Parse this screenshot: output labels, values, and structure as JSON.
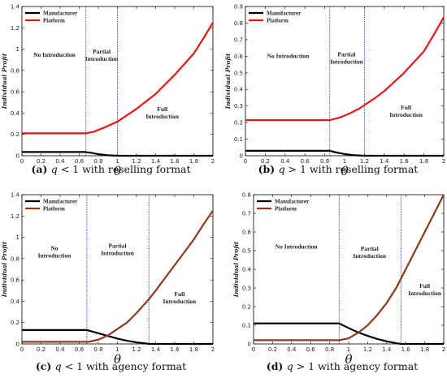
{
  "figure": {
    "ylabel": "Individual Profit",
    "xlabel": "θ"
  },
  "chart_data": [
    {
      "id": "a",
      "type": "line",
      "caption": {
        "tag": "(a)",
        "q": "q",
        "rest": " < 1 with reselling format"
      },
      "xlim": [
        0,
        2
      ],
      "ylim": [
        0,
        1.4
      ],
      "xticks": [
        "0",
        "0.2",
        "0.4",
        "0.6",
        "0.8",
        "1",
        "1.2",
        "1.4",
        "1.6",
        "1.8",
        "2"
      ],
      "yticks": [
        "0",
        "0.2",
        "0.4",
        "0.6",
        "0.8",
        "1",
        "1.2",
        "1.4"
      ],
      "thresholds": [
        0.67,
        1.0
      ],
      "regions": [
        {
          "lines": [
            "No Introduction"
          ],
          "x": 0.34,
          "y": 0.93
        },
        {
          "lines": [
            "Partial",
            "Introduction"
          ],
          "x": 0.835,
          "y": 0.96
        },
        {
          "lines": [
            "Full",
            "Introduction"
          ],
          "x": 1.47,
          "y": 0.42
        }
      ],
      "series": [
        {
          "name": "Manufacturer",
          "color": "#000000",
          "x": [
            0,
            0.67,
            0.72,
            0.8,
            0.9,
            1.0,
            2.0
          ],
          "y": [
            0.035,
            0.035,
            0.028,
            0.015,
            0.005,
            0.0,
            0.0
          ]
        },
        {
          "name": "Platform",
          "color": "#e8151b",
          "x": [
            0,
            0.67,
            0.75,
            0.85,
            0.95,
            1.0,
            1.1,
            1.2,
            1.3,
            1.4,
            1.5,
            1.6,
            1.7,
            1.8,
            1.9,
            2.0
          ],
          "y": [
            0.21,
            0.21,
            0.225,
            0.26,
            0.3,
            0.32,
            0.38,
            0.44,
            0.51,
            0.58,
            0.67,
            0.76,
            0.86,
            0.96,
            1.1,
            1.25
          ]
        }
      ]
    },
    {
      "id": "b",
      "type": "line",
      "caption": {
        "tag": "(b)",
        "q": "q",
        "rest": " > 1 with reselling format"
      },
      "xlim": [
        0,
        2
      ],
      "ylim": [
        0,
        0.9
      ],
      "xticks": [
        "0",
        "0.2",
        "0.4",
        "0.6",
        "0.8",
        "1",
        "1.2",
        "1.4",
        "1.6",
        "1.8",
        "2"
      ],
      "yticks": [
        "0",
        "0.1",
        "0.2",
        "0.3",
        "0.4",
        "0.5",
        "0.6",
        "0.7",
        "0.8",
        "0.9"
      ],
      "thresholds": [
        0.85,
        1.2
      ],
      "regions": [
        {
          "lines": [
            "No Introduction"
          ],
          "x": 0.43,
          "y": 0.59
        },
        {
          "lines": [
            "Partial",
            "Introduction"
          ],
          "x": 1.02,
          "y": 0.6
        },
        {
          "lines": [
            "Full",
            "Introduction"
          ],
          "x": 1.62,
          "y": 0.28
        }
      ],
      "series": [
        {
          "name": "Manufacturer",
          "color": "#000000",
          "x": [
            0,
            0.85,
            0.9,
            1.0,
            1.1,
            1.2,
            2.0
          ],
          "y": [
            0.03,
            0.03,
            0.022,
            0.01,
            0.003,
            0.0,
            0.0
          ]
        },
        {
          "name": "Platform",
          "color": "#e8151b",
          "x": [
            0,
            0.85,
            0.95,
            1.05,
            1.15,
            1.2,
            1.3,
            1.4,
            1.5,
            1.6,
            1.7,
            1.8,
            1.9,
            2.0
          ],
          "y": [
            0.215,
            0.215,
            0.23,
            0.255,
            0.285,
            0.305,
            0.345,
            0.39,
            0.445,
            0.5,
            0.565,
            0.63,
            0.73,
            0.835
          ]
        }
      ]
    },
    {
      "id": "c",
      "type": "line",
      "caption": {
        "tag": "(c)",
        "q": "q",
        "rest": " < 1 with agency format"
      },
      "xlim": [
        0,
        2
      ],
      "ylim": [
        0,
        1.4
      ],
      "xticks": [
        "0",
        "0.2",
        "0.4",
        "0.6",
        "0.8",
        "1",
        "1.2",
        "1.4",
        "1.6",
        "1.8",
        "2"
      ],
      "yticks": [
        "0",
        "0.2",
        "0.4",
        "0.6",
        "0.8",
        "1",
        "1.2",
        "1.4"
      ],
      "thresholds": [
        0.68,
        1.33
      ],
      "regions": [
        {
          "lines": [
            "No",
            "Introduction"
          ],
          "x": 0.34,
          "y": 0.88
        },
        {
          "lines": [
            "Partial",
            "Introduction"
          ],
          "x": 1.0,
          "y": 0.9
        },
        {
          "lines": [
            "Full",
            "Introduction"
          ],
          "x": 1.65,
          "y": 0.45
        }
      ],
      "series": [
        {
          "name": "Manufacturer",
          "color": "#000000",
          "x": [
            0,
            0.68,
            0.8,
            0.9,
            1.0,
            1.1,
            1.2,
            1.3,
            1.33,
            2.0
          ],
          "y": [
            0.13,
            0.13,
            0.1,
            0.075,
            0.05,
            0.03,
            0.015,
            0.004,
            0.0,
            0.0
          ]
        },
        {
          "name": "Platform",
          "color": "#8b3a1e",
          "x": [
            0,
            0.7,
            0.8,
            0.9,
            1.0,
            1.1,
            1.2,
            1.33,
            1.4,
            1.5,
            1.6,
            1.7,
            1.8,
            1.9,
            2.0
          ],
          "y": [
            0.02,
            0.02,
            0.04,
            0.08,
            0.14,
            0.2,
            0.29,
            0.42,
            0.5,
            0.62,
            0.74,
            0.86,
            0.98,
            1.12,
            1.25
          ]
        }
      ]
    },
    {
      "id": "d",
      "type": "line",
      "caption": {
        "tag": "(d)",
        "q": "q",
        "rest": " > 1 with agency format"
      },
      "xlim": [
        0,
        2
      ],
      "ylim": [
        0,
        0.8
      ],
      "xticks": [
        "0",
        "0.2",
        "0.4",
        "0.6",
        "0.8",
        "1",
        "1.2",
        "1.4",
        "1.6",
        "1.8",
        "2"
      ],
      "yticks": [
        "0",
        "0.1",
        "0.2",
        "0.3",
        "0.4",
        "0.5",
        "0.6",
        "0.7",
        "0.8"
      ],
      "thresholds": [
        0.9,
        1.55
      ],
      "regions": [
        {
          "lines": [
            "No Introduction"
          ],
          "x": 0.45,
          "y": 0.51
        },
        {
          "lines": [
            "Partial",
            "Introduction"
          ],
          "x": 1.22,
          "y": 0.5
        },
        {
          "lines": [
            "Full",
            "Introduction"
          ],
          "x": 1.8,
          "y": 0.3
        }
      ],
      "series": [
        {
          "name": "Manufacturer",
          "color": "#000000",
          "x": [
            0,
            0.9,
            1.0,
            1.1,
            1.2,
            1.3,
            1.4,
            1.5,
            1.55,
            2.0
          ],
          "y": [
            0.11,
            0.11,
            0.085,
            0.062,
            0.043,
            0.027,
            0.014,
            0.004,
            0.0,
            0.0
          ]
        },
        {
          "name": "Platform",
          "color": "#8b3a1e",
          "x": [
            0,
            0.9,
            1.0,
            1.1,
            1.2,
            1.3,
            1.4,
            1.5,
            1.55,
            1.6,
            1.7,
            1.8,
            1.9,
            2.0
          ],
          "y": [
            0.02,
            0.02,
            0.03,
            0.06,
            0.1,
            0.155,
            0.22,
            0.3,
            0.35,
            0.4,
            0.5,
            0.6,
            0.7,
            0.8
          ]
        }
      ]
    }
  ]
}
